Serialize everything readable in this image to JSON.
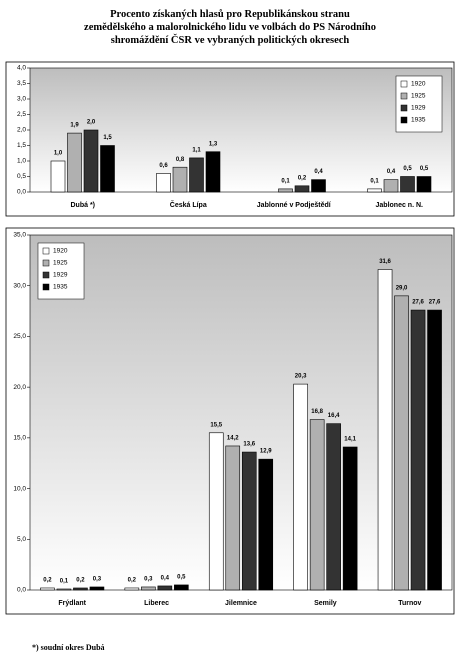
{
  "title": "Procento získaných hlasů pro Republikánskou stranu zemědělského a malorolnického lidu ve volbách do PS Národního shromáždění ČSR ve vybraných politických okresech",
  "footnote": "*) soudní okres Dubá",
  "chart_data": [
    {
      "type": "bar",
      "categories": [
        "Dubá *)",
        "Česká Lípa",
        "Jablonné v Podještědí",
        "Jablonec n. N."
      ],
      "series": [
        {
          "name": "1920",
          "color": "#ffffff",
          "values": [
            1.0,
            0.6,
            null,
            0.1
          ],
          "value_labels": [
            "1,0",
            "0,6",
            null,
            "0,1"
          ]
        },
        {
          "name": "1925",
          "color": "#b0b0b0",
          "values": [
            1.9,
            0.8,
            0.1,
            0.4
          ],
          "value_labels": [
            "1,9",
            "0,8",
            "0,1",
            "0,4"
          ]
        },
        {
          "name": "1929",
          "color": "#333333",
          "values": [
            2.0,
            1.1,
            0.2,
            0.5
          ],
          "value_labels": [
            "2,0",
            "1,1",
            "0,2",
            "0,5"
          ]
        },
        {
          "name": "1935",
          "color": "#000000",
          "values": [
            1.5,
            1.3,
            0.4,
            0.5
          ],
          "value_labels": [
            "1,5",
            "1,3",
            "0,4",
            "0,5"
          ]
        }
      ],
      "ylim": [
        0,
        4
      ],
      "yticks": [
        {
          "value": 0,
          "label": "0,0"
        },
        {
          "value": 0.5,
          "label": "0,5"
        },
        {
          "value": 1,
          "label": "1,0"
        },
        {
          "value": 1.5,
          "label": "1,5"
        },
        {
          "value": 2,
          "label": "2,0"
        },
        {
          "value": 2.5,
          "label": "2,5"
        },
        {
          "value": 3,
          "label": "3,0"
        },
        {
          "value": 3.5,
          "label": "3,5"
        },
        {
          "value": 4,
          "label": "4,0"
        }
      ],
      "legend": "upper right"
    },
    {
      "type": "bar",
      "categories": [
        "Frýdlant",
        "Liberec",
        "Jilemnice",
        "Semily",
        "Turnov"
      ],
      "series": [
        {
          "name": "1920",
          "color": "#ffffff",
          "values": [
            0.2,
            0.2,
            15.5,
            20.3,
            31.6
          ],
          "value_labels": [
            "0,2",
            "0,2",
            "15,5",
            "20,3",
            "31,6"
          ]
        },
        {
          "name": "1925",
          "color": "#b0b0b0",
          "values": [
            0.1,
            0.3,
            14.2,
            16.8,
            29.0
          ],
          "value_labels": [
            "0,1",
            "0,3",
            "14,2",
            "16,8",
            "29,0"
          ]
        },
        {
          "name": "1929",
          "color": "#333333",
          "values": [
            0.2,
            0.4,
            13.6,
            16.4,
            27.6
          ],
          "value_labels": [
            "0,2",
            "0,4",
            "13,6",
            "16,4",
            "27,6"
          ]
        },
        {
          "name": "1935",
          "color": "#000000",
          "values": [
            0.3,
            0.5,
            12.9,
            14.1,
            27.6
          ],
          "value_labels": [
            "0,3",
            "0,5",
            "12,9",
            "14,1",
            "27,6"
          ]
        }
      ],
      "ylim": [
        0,
        35
      ],
      "yticks": [
        {
          "value": 0,
          "label": "0,0"
        },
        {
          "value": 5,
          "label": "5,0"
        },
        {
          "value": 10,
          "label": "10,0"
        },
        {
          "value": 15,
          "label": "15,0"
        },
        {
          "value": 20,
          "label": "20,0"
        },
        {
          "value": 25,
          "label": "25,0"
        },
        {
          "value": 30,
          "label": "30,0"
        },
        {
          "value": 35,
          "label": "35,0"
        }
      ],
      "legend": "upper left"
    }
  ]
}
